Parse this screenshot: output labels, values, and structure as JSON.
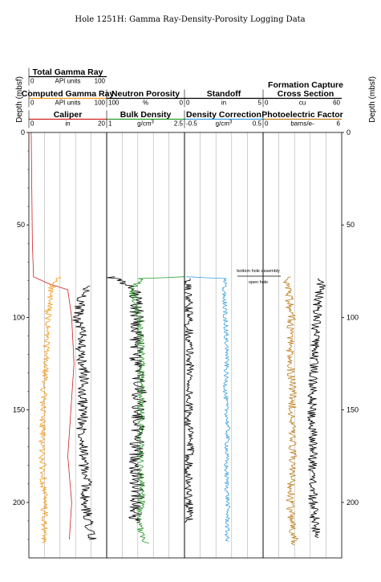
{
  "title": "Hole 1251H: Gamma Ray-Density-Porosity Logging Data",
  "depth_axis_label": "Depth (mbsf)",
  "chart_data": {
    "type": "line",
    "title": "Hole 1251H: Gamma Ray-Density-Porosity Logging Data",
    "ylabel": "Depth (mbsf)",
    "ylim": [
      0,
      230
    ],
    "y_ticks": [
      0,
      50,
      100,
      150,
      200
    ],
    "y_tick_labels": [
      "0",
      "50",
      "100",
      "150",
      "200"
    ],
    "grid": true,
    "tracks": [
      {
        "id": "t1",
        "headers": [
          {
            "name": "Total Gamma Ray",
            "unit": "API units",
            "min": "0",
            "max": "100",
            "color": "#000000"
          },
          {
            "name": "Computed Gamma Ray",
            "unit": "API units",
            "min": "0",
            "max": "100",
            "color": "#f39a1a"
          },
          {
            "name": "Caliper",
            "unit": "in",
            "min": "0",
            "max": "20",
            "color": "#d02020"
          }
        ]
      },
      {
        "id": "t2",
        "headers": [
          {
            "name": "Neutron Porosity",
            "unit": "%",
            "min": "100",
            "max": "0",
            "color": "#000000"
          },
          {
            "name": "Bulk Density",
            "unit": "g/cm3",
            "unit_base": "g/cm",
            "unit_sup": "3",
            "min": "1",
            "max": "2.5",
            "color": "#2a9a2a"
          }
        ]
      },
      {
        "id": "t3",
        "headers": [
          {
            "name": "Standoff",
            "unit": "in",
            "min": "0",
            "max": "5",
            "color": "#000000"
          },
          {
            "name": "Density Correction",
            "unit": "g/cm3",
            "unit_base": "g/cm",
            "unit_sup": "3",
            "min": "-0.5",
            "max": "0.5",
            "color": "#3aa0e0"
          }
        ]
      },
      {
        "id": "t4",
        "headers": [
          {
            "name": "Formation Capture Cross Section",
            "name_line1": "Formation Capture",
            "name_line2": "Cross Section",
            "unit": "cu",
            "min": "0",
            "max": "60",
            "color": "#000000"
          },
          {
            "name": "Photoelectric Factor",
            "unit": "barns/e-",
            "min": "0",
            "max": "6",
            "color": "#c08020"
          }
        ]
      }
    ],
    "annotations": [
      "bottom hole assembly",
      "open hole"
    ],
    "series": [
      {
        "track": 0,
        "color": "#d02020",
        "noise": 0.0,
        "points": [
          [
            0,
            3
          ],
          [
            20,
            3.5
          ],
          [
            40,
            4
          ],
          [
            60,
            4.5
          ],
          [
            78,
            6
          ],
          [
            79,
            11
          ],
          [
            82,
            27
          ],
          [
            85,
            50
          ],
          [
            100,
            55
          ],
          [
            125,
            58
          ],
          [
            150,
            54
          ],
          [
            175,
            50
          ],
          [
            200,
            55
          ],
          [
            220,
            52
          ]
        ]
      },
      {
        "track": 0,
        "color": "#f39a1a",
        "noise": 4.5,
        "points": [
          [
            78,
            38
          ],
          [
            82,
            32
          ],
          [
            85,
            28
          ],
          [
            100,
            24
          ],
          [
            120,
            22
          ],
          [
            150,
            18
          ],
          [
            175,
            17
          ],
          [
            200,
            20
          ],
          [
            222,
            19
          ]
        ]
      },
      {
        "track": 0,
        "color": "#000000",
        "noise": 7.0,
        "points": [
          [
            83,
            75
          ],
          [
            90,
            68
          ],
          [
            100,
            62
          ],
          [
            110,
            70
          ],
          [
            120,
            65
          ],
          [
            130,
            72
          ],
          [
            140,
            68
          ],
          [
            150,
            70
          ],
          [
            160,
            68
          ],
          [
            170,
            72
          ],
          [
            180,
            70
          ],
          [
            190,
            75
          ],
          [
            200,
            70
          ],
          [
            210,
            78
          ],
          [
            220,
            80
          ]
        ]
      },
      {
        "track": 1,
        "color": "#000000",
        "noise": 9.5,
        "points": [
          [
            78,
            5
          ],
          [
            85,
            35
          ],
          [
            100,
            40
          ],
          [
            120,
            38
          ],
          [
            140,
            42
          ],
          [
            160,
            40
          ],
          [
            180,
            38
          ],
          [
            200,
            40
          ],
          [
            211,
            35
          ]
        ]
      },
      {
        "track": 1,
        "color": "#2a9a2a",
        "noise": 4.5,
        "points": [
          [
            78,
            100
          ],
          [
            79,
            45
          ],
          [
            85,
            32
          ],
          [
            100,
            42
          ],
          [
            120,
            45
          ],
          [
            140,
            44
          ],
          [
            160,
            45
          ],
          [
            180,
            44
          ],
          [
            200,
            45
          ],
          [
            210,
            40
          ],
          [
            222,
            50
          ]
        ]
      },
      {
        "track": 2,
        "color": "#3aa0e0",
        "noise": 3.0,
        "points": [
          [
            78,
            0
          ],
          [
            79,
            52
          ],
          [
            85,
            50
          ],
          [
            100,
            52
          ],
          [
            120,
            54
          ],
          [
            140,
            52
          ],
          [
            160,
            55
          ],
          [
            180,
            53
          ],
          [
            200,
            55
          ],
          [
            221,
            54
          ]
        ]
      },
      {
        "track": 2,
        "color": "#000000",
        "noise": 5.5,
        "points": [
          [
            79,
            2
          ],
          [
            90,
            5
          ],
          [
            110,
            6
          ],
          [
            130,
            7
          ],
          [
            150,
            5
          ],
          [
            170,
            7
          ],
          [
            190,
            5
          ],
          [
            211,
            6
          ]
        ]
      },
      {
        "track": 3,
        "color": "#c08020",
        "noise": 5.5,
        "points": [
          [
            78,
            30
          ],
          [
            85,
            32
          ],
          [
            100,
            36
          ],
          [
            120,
            34
          ],
          [
            140,
            38
          ],
          [
            160,
            36
          ],
          [
            180,
            38
          ],
          [
            200,
            34
          ],
          [
            223,
            40
          ]
        ]
      },
      {
        "track": 3,
        "color": "#000000",
        "noise": 6.0,
        "points": [
          [
            79,
            75
          ],
          [
            90,
            70
          ],
          [
            110,
            66
          ],
          [
            130,
            64
          ],
          [
            150,
            62
          ],
          [
            170,
            64
          ],
          [
            190,
            62
          ],
          [
            210,
            66
          ],
          [
            219,
            68
          ]
        ]
      }
    ]
  }
}
